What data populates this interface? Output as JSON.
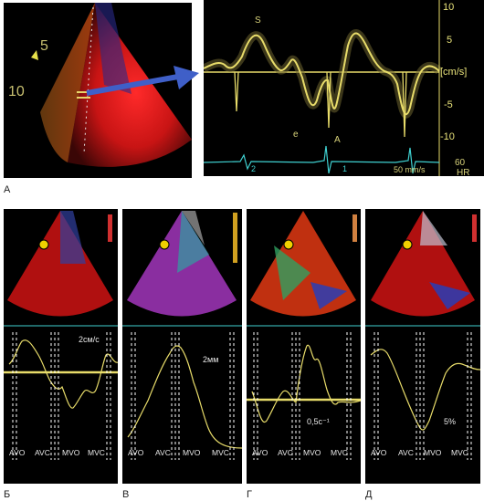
{
  "panelA": {
    "label": "А",
    "depth_marks": [
      "5",
      "10"
    ],
    "spectral": {
      "peaks": {
        "s": "S",
        "e": "e",
        "a": "A"
      },
      "ticks": [
        "10",
        "5",
        "[cm/s]",
        "-5",
        "-10"
      ],
      "speed": "50 mm/s",
      "hr_value": "60",
      "hr_label": "HR",
      "ecg_marks": [
        "2",
        "1"
      ]
    },
    "colors": {
      "trace": "#e8dc6a",
      "ecg": "#3fd0d0",
      "arrow": "#3f5fc8"
    }
  },
  "panels": [
    {
      "label": "Б",
      "scale": "2см/с",
      "events": [
        "AVO",
        "AVC",
        "MVO",
        "MVC"
      ]
    },
    {
      "label": "В",
      "scale": "2мм",
      "events": [
        "AVO",
        "AVC",
        "MVO",
        "MVC"
      ]
    },
    {
      "label": "Г",
      "scale": "0,5c⁻¹",
      "events": [
        "AVO",
        "AVC",
        "MVO",
        "MVC"
      ]
    },
    {
      "label": "Д",
      "scale": "5%",
      "events": [
        "AVO",
        "AVC",
        "MVO",
        "MVC"
      ]
    }
  ]
}
